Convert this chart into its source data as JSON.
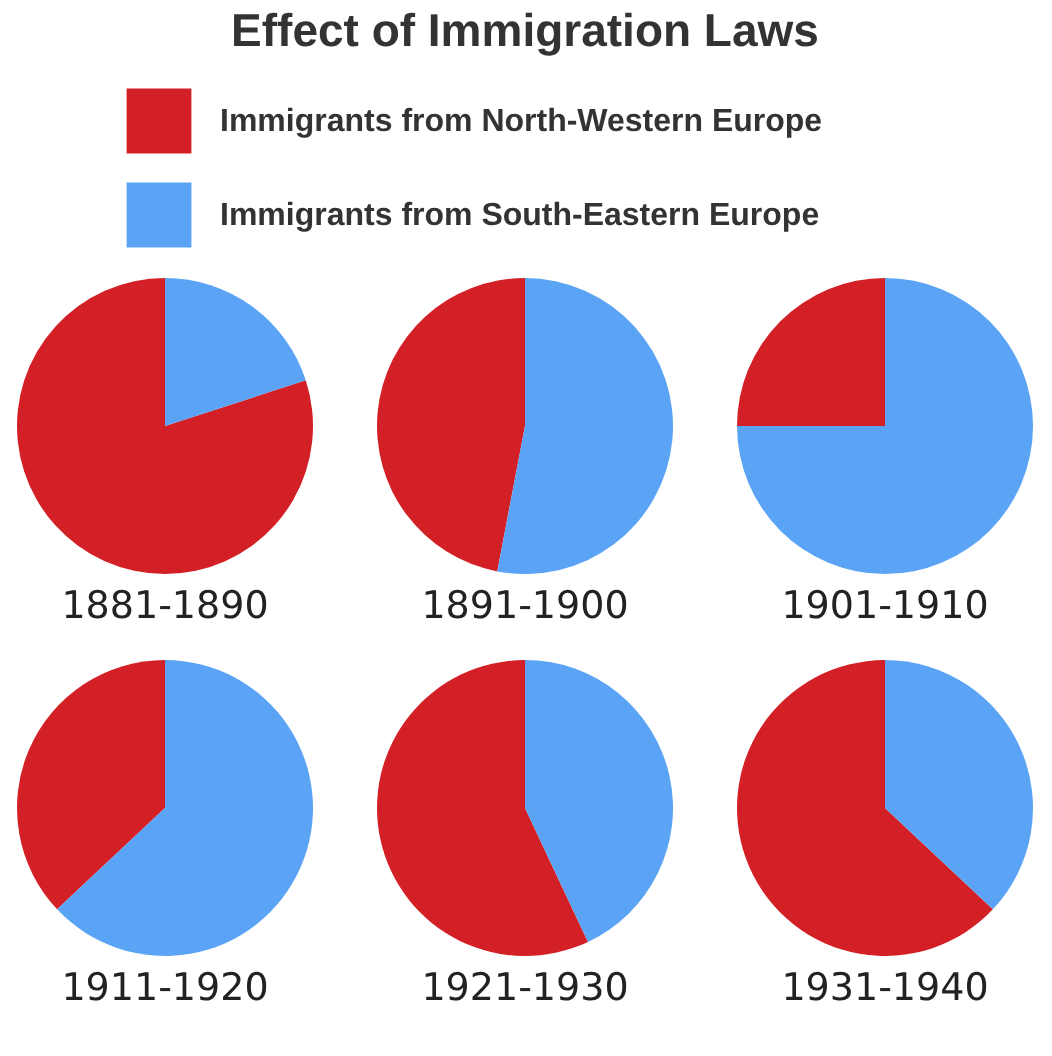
{
  "chart_data": {
    "type": "pie",
    "title": "Effect of Immigration Laws",
    "legend": "top",
    "categories": [
      "Immigrants from North-Western Europe",
      "Immigrants from South-Eastern Europe"
    ],
    "colors": [
      "#d32027",
      "#5ba4f5"
    ],
    "series": [
      {
        "name": "1881-1890",
        "values": [
          80,
          20
        ]
      },
      {
        "name": "1891-1900",
        "values": [
          47,
          53
        ]
      },
      {
        "name": "1901-1910",
        "values": [
          25,
          75
        ]
      },
      {
        "name": "1911-1920",
        "values": [
          37,
          63
        ]
      },
      {
        "name": "1921-1930",
        "values": [
          57,
          43
        ]
      },
      {
        "name": "1931-1940",
        "values": [
          63,
          37
        ]
      }
    ]
  }
}
